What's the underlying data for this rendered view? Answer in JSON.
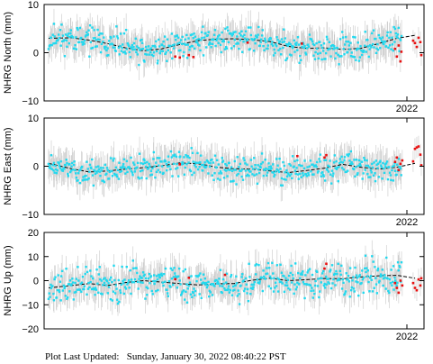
{
  "colors": {
    "cyan": "#22d8ee",
    "red": "#e81010",
    "error_bar": "#c8c8c8",
    "trend": "#000000"
  },
  "footer": {
    "label": "Plot Last Updated:",
    "value": "Sunday, January 30, 2022 08:40:22 PST"
  },
  "chart_data": [
    {
      "type": "scatter",
      "ylabel": "NHRG North (mm)",
      "x_tick_label": "2022",
      "y_ticks": [
        "10",
        "0",
        "−10"
      ],
      "ylim": [
        -10,
        10
      ],
      "xlim": [
        2018.1,
        2022.3
      ],
      "trend": [
        [
          2018.15,
          3.0
        ],
        [
          2018.4,
          3.1
        ],
        [
          2018.6,
          2.6
        ],
        [
          2018.8,
          1.9
        ],
        [
          2019.0,
          1.0
        ],
        [
          2019.2,
          0.4
        ],
        [
          2019.4,
          0.8
        ],
        [
          2019.6,
          1.7
        ],
        [
          2019.8,
          2.5
        ],
        [
          2020.0,
          2.8
        ],
        [
          2020.2,
          2.9
        ],
        [
          2020.4,
          2.7
        ],
        [
          2020.6,
          2.3
        ],
        [
          2020.8,
          1.3
        ],
        [
          2021.0,
          0.9
        ],
        [
          2021.2,
          1.0
        ],
        [
          2021.4,
          0.7
        ],
        [
          2021.6,
          0.9
        ],
        [
          2021.8,
          1.9
        ],
        [
          2022.0,
          3.0
        ],
        [
          2022.2,
          3.6
        ]
      ],
      "cyan_series": {
        "start": 2018.15,
        "end": 2022.05,
        "noise": 1.4,
        "seed": 11
      },
      "red_points": [
        [
          2019.55,
          -0.8
        ],
        [
          2019.6,
          -1.0
        ],
        [
          2019.7,
          -0.5
        ],
        [
          2019.75,
          -0.9
        ],
        [
          2020.35,
          2.1
        ],
        [
          2020.95,
          1.9
        ],
        [
          2021.98,
          0.8
        ],
        [
          2022.0,
          -0.8
        ],
        [
          2022.02,
          1.5
        ],
        [
          2022.04,
          -1.8
        ],
        [
          2022.05,
          0.2
        ],
        [
          2022.18,
          2.5
        ],
        [
          2022.2,
          2.0
        ],
        [
          2022.22,
          1.2
        ],
        [
          2022.24,
          3.1
        ],
        [
          2022.26,
          2.2
        ],
        [
          2022.27,
          -0.5
        ]
      ]
    },
    {
      "type": "scatter",
      "ylabel": "NHRG East (mm)",
      "x_tick_label": "2022",
      "y_ticks": [
        "10",
        "0",
        "−10"
      ],
      "ylim": [
        -10,
        10
      ],
      "xlim": [
        2018.1,
        2022.3
      ],
      "trend": [
        [
          2018.15,
          0.6
        ],
        [
          2018.4,
          -0.5
        ],
        [
          2018.6,
          -1.2
        ],
        [
          2018.8,
          -1.0
        ],
        [
          2019.0,
          -0.6
        ],
        [
          2019.2,
          -0.3
        ],
        [
          2019.4,
          0.1
        ],
        [
          2019.6,
          0.7
        ],
        [
          2019.8,
          0.5
        ],
        [
          2019.9,
          0.2
        ],
        [
          2020.0,
          -0.2
        ],
        [
          2020.2,
          -0.5
        ],
        [
          2020.4,
          -0.6
        ],
        [
          2020.6,
          -1.0
        ],
        [
          2020.8,
          -1.3
        ],
        [
          2021.0,
          -0.9
        ],
        [
          2021.2,
          -0.4
        ],
        [
          2021.4,
          0.4
        ],
        [
          2021.6,
          -0.2
        ],
        [
          2021.8,
          -0.6
        ],
        [
          2022.0,
          -0.2
        ],
        [
          2022.2,
          0.6
        ]
      ],
      "cyan_series": {
        "start": 2018.15,
        "end": 2022.05,
        "noise": 1.3,
        "seed": 23
      },
      "red_points": [
        [
          2019.6,
          0.4
        ],
        [
          2020.9,
          2.1
        ],
        [
          2021.2,
          1.8
        ],
        [
          2021.22,
          2.3
        ],
        [
          2021.98,
          0.9
        ],
        [
          2022.0,
          1.8
        ],
        [
          2022.02,
          -0.8
        ],
        [
          2022.04,
          0.5
        ],
        [
          2022.06,
          1.2
        ],
        [
          2022.18,
          1.0
        ],
        [
          2022.2,
          3.6
        ],
        [
          2022.22,
          3.9
        ],
        [
          2022.24,
          4.1
        ],
        [
          2022.26,
          2.4
        ],
        [
          2022.27,
          0.2
        ]
      ]
    },
    {
      "type": "scatter",
      "ylabel": "NHRG Up (mm)",
      "x_tick_label": "2022",
      "y_ticks": [
        "20",
        "10",
        "0",
        "−10",
        "−20"
      ],
      "ylim": [
        -20,
        20
      ],
      "xlim": [
        2018.1,
        2022.3
      ],
      "trend": [
        [
          2018.15,
          -3.0
        ],
        [
          2018.4,
          -2.0
        ],
        [
          2018.6,
          -1.2
        ],
        [
          2018.8,
          -2.0
        ],
        [
          2019.0,
          -0.8
        ],
        [
          2019.2,
          0.0
        ],
        [
          2019.4,
          -0.6
        ],
        [
          2019.6,
          -1.2
        ],
        [
          2019.8,
          -1.8
        ],
        [
          2020.0,
          -1.3
        ],
        [
          2020.2,
          -1.2
        ],
        [
          2020.4,
          0.2
        ],
        [
          2020.6,
          1.0
        ],
        [
          2020.8,
          0.0
        ],
        [
          2021.0,
          0.4
        ],
        [
          2021.2,
          0.9
        ],
        [
          2021.4,
          0.8
        ],
        [
          2021.6,
          1.5
        ],
        [
          2021.8,
          2.0
        ],
        [
          2022.0,
          2.2
        ],
        [
          2022.2,
          1.0
        ]
      ],
      "cyan_series": {
        "start": 2018.15,
        "end": 2022.05,
        "noise": 3.4,
        "seed": 37
      },
      "red_points": [
        [
          2019.55,
          0.6
        ],
        [
          2019.7,
          1.2
        ],
        [
          2020.1,
          2.4
        ],
        [
          2021.2,
          5.0
        ],
        [
          2021.22,
          7.0
        ],
        [
          2021.98,
          -1.0
        ],
        [
          2022.0,
          -3.0
        ],
        [
          2022.02,
          -5.0
        ],
        [
          2022.04,
          0.0
        ],
        [
          2022.06,
          -2.0
        ],
        [
          2022.18,
          -1.0
        ],
        [
          2022.2,
          -3.0
        ],
        [
          2022.22,
          -4.0
        ],
        [
          2022.24,
          0.5
        ],
        [
          2022.26,
          -2.0
        ],
        [
          2022.27,
          1.0
        ]
      ]
    }
  ]
}
